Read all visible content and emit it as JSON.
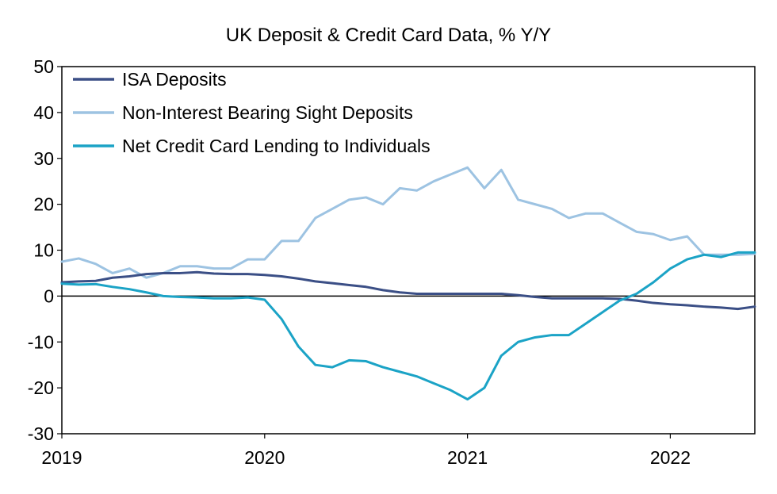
{
  "chart_data": {
    "type": "line",
    "title": "UK Deposit & Credit Card Data, % Y/Y",
    "xlabel": "",
    "ylabel": "",
    "xlim": [
      "2019-01",
      "2022-06"
    ],
    "ylim": [
      -30,
      50
    ],
    "yticks": [
      -30,
      -20,
      -10,
      0,
      10,
      20,
      30,
      40,
      50
    ],
    "xticks": [
      "2019",
      "2020",
      "2021",
      "2022"
    ],
    "grid": false,
    "zero_line": true,
    "legend_position": "top-left",
    "x": [
      "2019-01",
      "2019-02",
      "2019-03",
      "2019-04",
      "2019-05",
      "2019-06",
      "2019-07",
      "2019-08",
      "2019-09",
      "2019-10",
      "2019-11",
      "2019-12",
      "2020-01",
      "2020-02",
      "2020-03",
      "2020-04",
      "2020-05",
      "2020-06",
      "2020-07",
      "2020-08",
      "2020-09",
      "2020-10",
      "2020-11",
      "2020-12",
      "2021-01",
      "2021-02",
      "2021-03",
      "2021-04",
      "2021-05",
      "2021-06",
      "2021-07",
      "2021-08",
      "2021-09",
      "2021-10",
      "2021-11",
      "2021-12",
      "2022-01",
      "2022-02",
      "2022-03",
      "2022-04",
      "2022-05",
      "2022-06"
    ],
    "series": [
      {
        "name": "ISA Deposits",
        "color": "#3b4f86",
        "values": [
          3.0,
          3.2,
          3.3,
          4.0,
          4.3,
          4.8,
          5.0,
          5.0,
          5.2,
          4.9,
          4.8,
          4.8,
          4.6,
          4.3,
          3.8,
          3.2,
          2.8,
          2.4,
          2.0,
          1.3,
          0.8,
          0.5,
          0.5,
          0.5,
          0.5,
          0.5,
          0.5,
          0.2,
          -0.2,
          -0.5,
          -0.5,
          -0.5,
          -0.5,
          -0.6,
          -1.0,
          -1.5,
          -1.8,
          -2.0,
          -2.3,
          -2.5,
          -2.8,
          -2.3
        ]
      },
      {
        "name": "Non-Interest Bearing Sight Deposits",
        "color": "#9dc3e2",
        "values": [
          7.5,
          8.2,
          7.0,
          5.0,
          6.0,
          4.0,
          5.0,
          6.5,
          6.5,
          6.0,
          6.0,
          8.0,
          8.0,
          12.0,
          12.0,
          17.0,
          19.0,
          21.0,
          21.5,
          20.0,
          23.5,
          23.0,
          25.0,
          26.5,
          28.0,
          23.5,
          27.5,
          21.0,
          20.0,
          19.0,
          17.0,
          18.0,
          18.0,
          16.0,
          14.0,
          13.5,
          12.2,
          13.0,
          9.0,
          9.0,
          9.0,
          9.2
        ]
      },
      {
        "name": "Net Credit Card Lending to Individuals",
        "color": "#1ba3c6",
        "values": [
          2.7,
          2.5,
          2.6,
          2.0,
          1.5,
          0.8,
          0.0,
          -0.2,
          -0.3,
          -0.5,
          -0.5,
          -0.3,
          -0.8,
          -5.0,
          -11.0,
          -15.0,
          -15.5,
          -14.0,
          -14.2,
          -15.5,
          -16.5,
          -17.5,
          -19.0,
          -20.5,
          -22.5,
          -20.0,
          -13.0,
          -10.0,
          -9.0,
          -8.5,
          -8.5,
          -6.0,
          -3.5,
          -1.0,
          0.5,
          3.0,
          6.0,
          8.0,
          9.0,
          8.5,
          9.5,
          9.5
        ]
      }
    ]
  }
}
